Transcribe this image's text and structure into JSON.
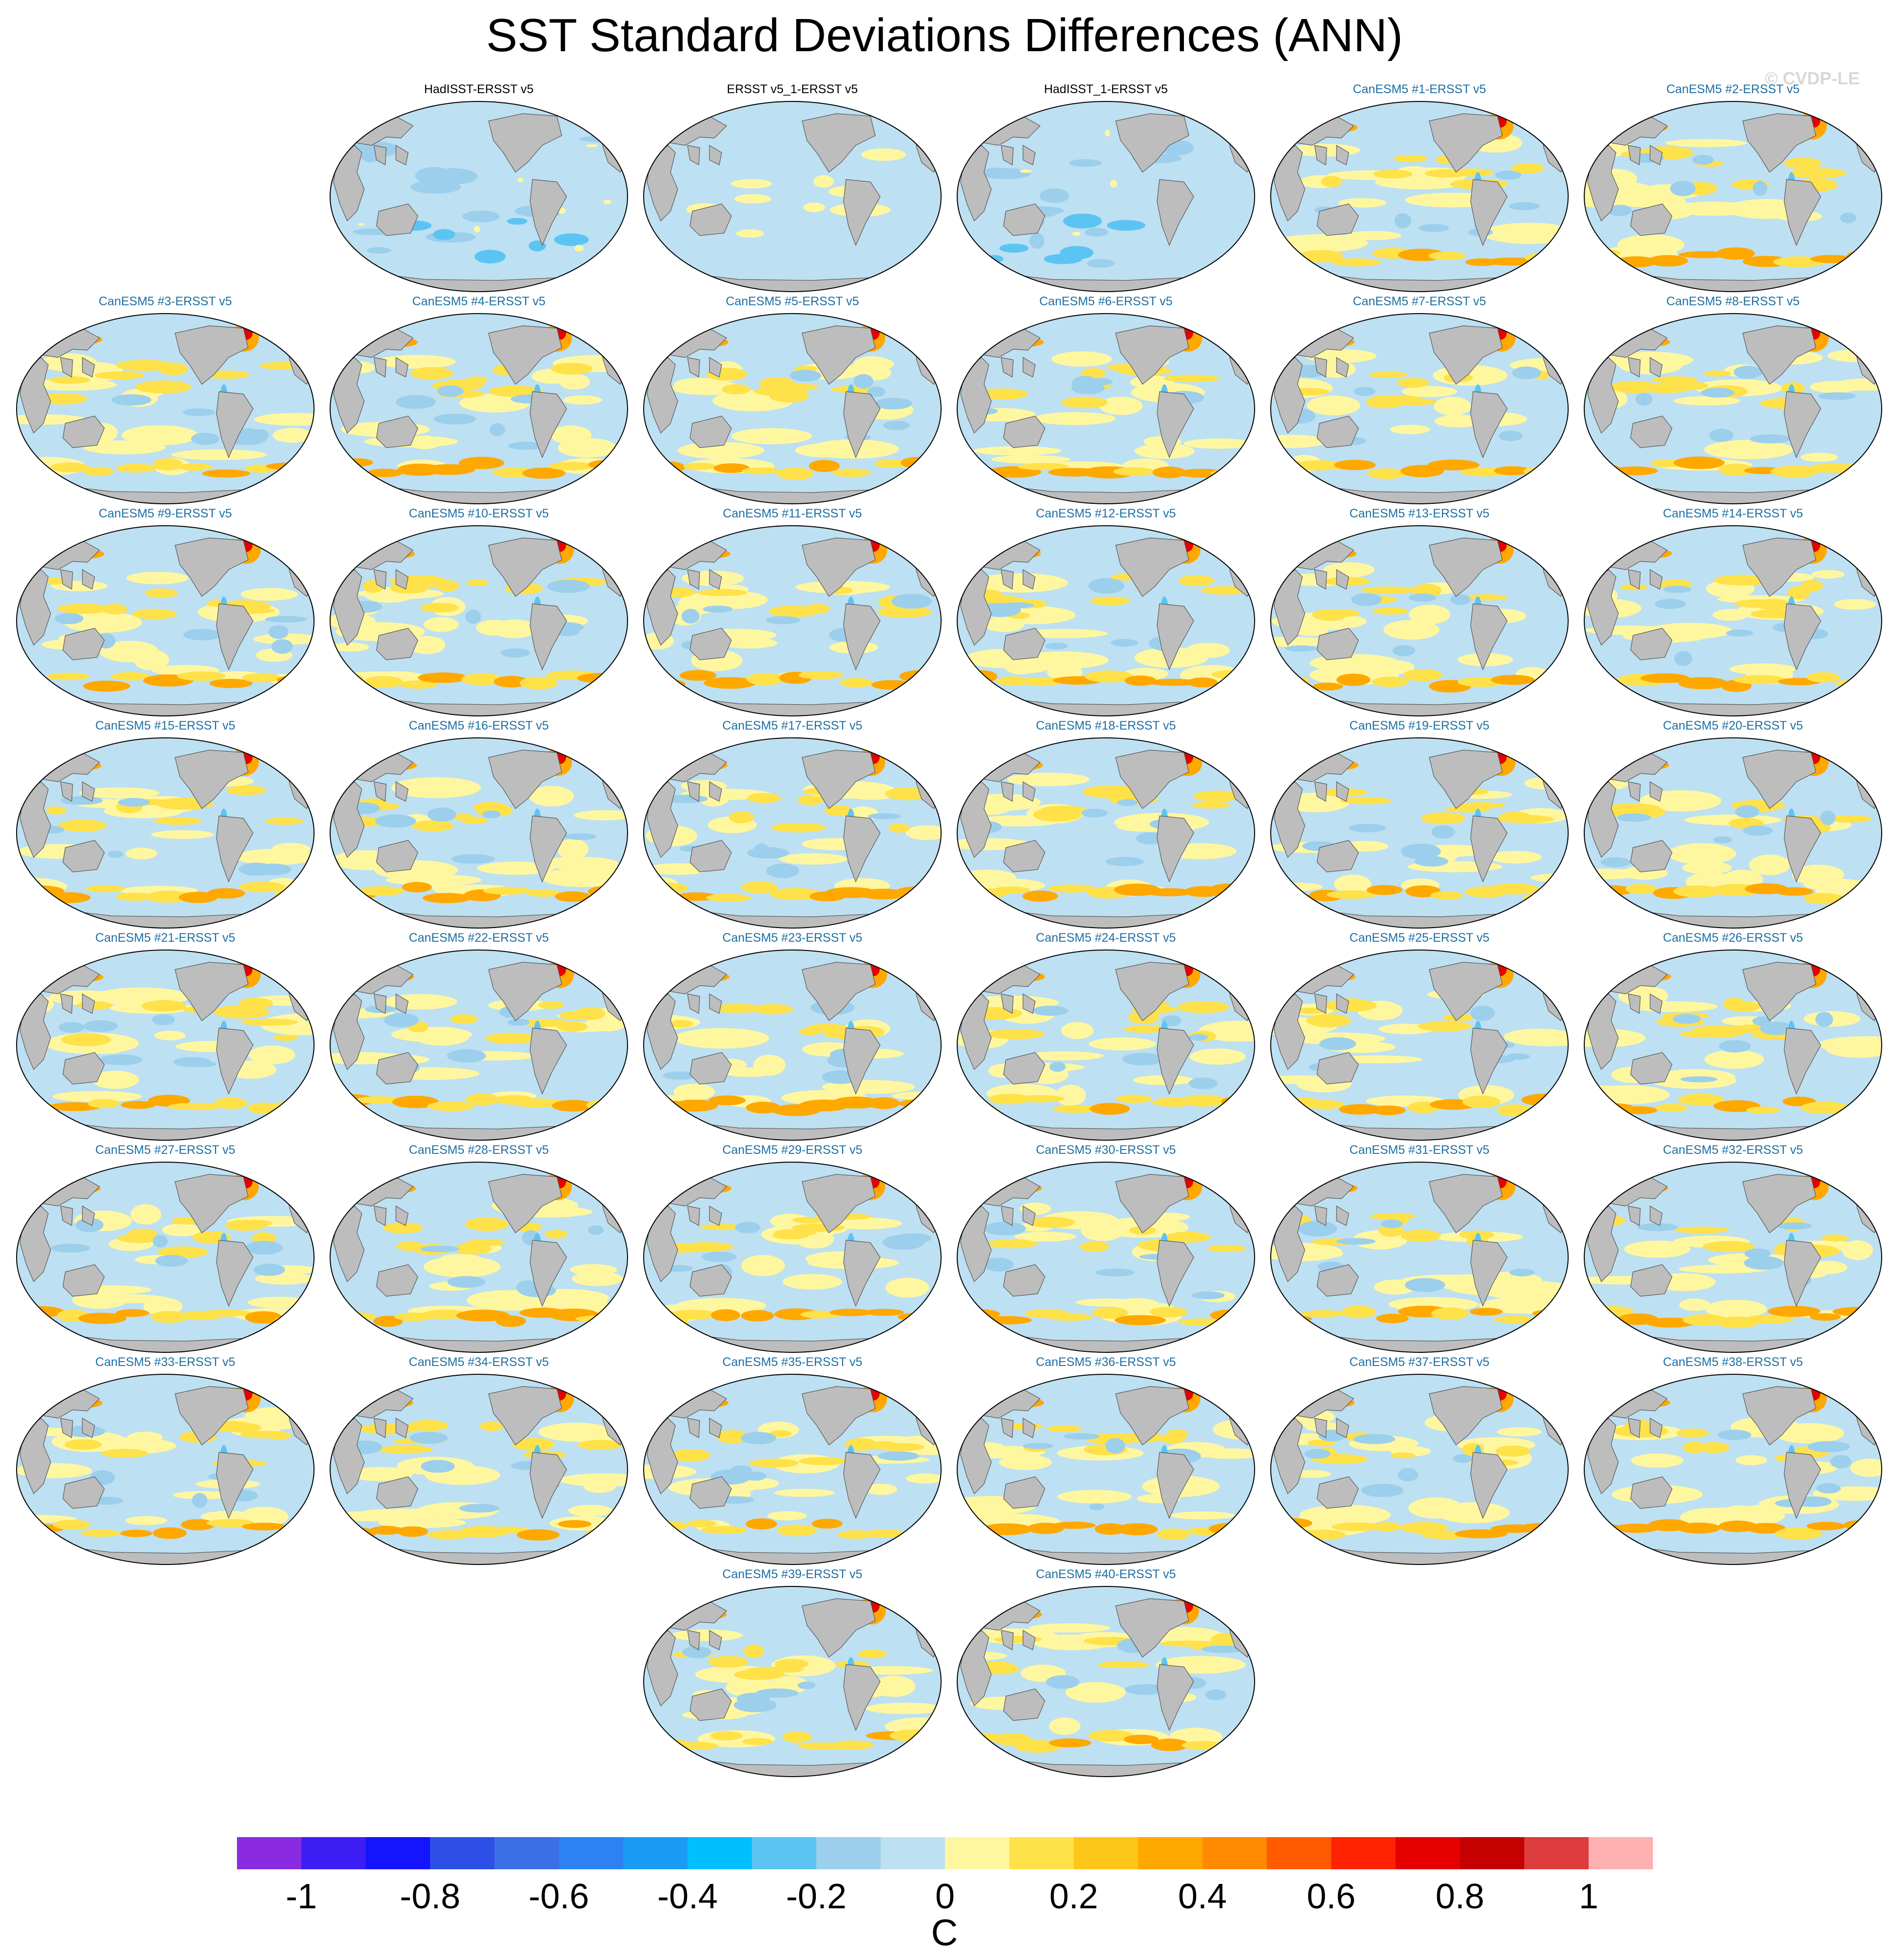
{
  "title": "SST Standard Deviations Differences (ANN)",
  "watermark": "© CVDP-LE",
  "panels": [
    {
      "title": "HadISST-ERSST v5",
      "kind": "obs_a"
    },
    {
      "title": "ERSST v5_1-ERSST v5",
      "kind": "obs_b"
    },
    {
      "title": "HadISST_1-ERSST v5",
      "kind": "obs_a"
    },
    {
      "title": "CanESM5 #1-ERSST v5",
      "kind": "model"
    },
    {
      "title": "CanESM5 #2-ERSST v5",
      "kind": "model"
    },
    {
      "title": "CanESM5 #3-ERSST v5",
      "kind": "model"
    },
    {
      "title": "CanESM5 #4-ERSST v5",
      "kind": "model"
    },
    {
      "title": "CanESM5 #5-ERSST v5",
      "kind": "model"
    },
    {
      "title": "CanESM5 #6-ERSST v5",
      "kind": "model"
    },
    {
      "title": "CanESM5 #7-ERSST v5",
      "kind": "model"
    },
    {
      "title": "CanESM5 #8-ERSST v5",
      "kind": "model"
    },
    {
      "title": "CanESM5 #9-ERSST v5",
      "kind": "model"
    },
    {
      "title": "CanESM5 #10-ERSST v5",
      "kind": "model"
    },
    {
      "title": "CanESM5 #11-ERSST v5",
      "kind": "model"
    },
    {
      "title": "CanESM5 #12-ERSST v5",
      "kind": "model"
    },
    {
      "title": "CanESM5 #13-ERSST v5",
      "kind": "model"
    },
    {
      "title": "CanESM5 #14-ERSST v5",
      "kind": "model"
    },
    {
      "title": "CanESM5 #15-ERSST v5",
      "kind": "model"
    },
    {
      "title": "CanESM5 #16-ERSST v5",
      "kind": "model"
    },
    {
      "title": "CanESM5 #17-ERSST v5",
      "kind": "model"
    },
    {
      "title": "CanESM5 #18-ERSST v5",
      "kind": "model"
    },
    {
      "title": "CanESM5 #19-ERSST v5",
      "kind": "model"
    },
    {
      "title": "CanESM5 #20-ERSST v5",
      "kind": "model"
    },
    {
      "title": "CanESM5 #21-ERSST v5",
      "kind": "model"
    },
    {
      "title": "CanESM5 #22-ERSST v5",
      "kind": "model"
    },
    {
      "title": "CanESM5 #23-ERSST v5",
      "kind": "model"
    },
    {
      "title": "CanESM5 #24-ERSST v5",
      "kind": "model"
    },
    {
      "title": "CanESM5 #25-ERSST v5",
      "kind": "model"
    },
    {
      "title": "CanESM5 #26-ERSST v5",
      "kind": "model"
    },
    {
      "title": "CanESM5 #27-ERSST v5",
      "kind": "model"
    },
    {
      "title": "CanESM5 #28-ERSST v5",
      "kind": "model"
    },
    {
      "title": "CanESM5 #29-ERSST v5",
      "kind": "model"
    },
    {
      "title": "CanESM5 #30-ERSST v5",
      "kind": "model"
    },
    {
      "title": "CanESM5 #31-ERSST v5",
      "kind": "model"
    },
    {
      "title": "CanESM5 #32-ERSST v5",
      "kind": "model"
    },
    {
      "title": "CanESM5 #33-ERSST v5",
      "kind": "model"
    },
    {
      "title": "CanESM5 #34-ERSST v5",
      "kind": "model"
    },
    {
      "title": "CanESM5 #35-ERSST v5",
      "kind": "model"
    },
    {
      "title": "CanESM5 #36-ERSST v5",
      "kind": "model"
    },
    {
      "title": "CanESM5 #37-ERSST v5",
      "kind": "model"
    },
    {
      "title": "CanESM5 #38-ERSST v5",
      "kind": "model"
    },
    {
      "title": "CanESM5 #39-ERSST v5",
      "kind": "model"
    },
    {
      "title": "CanESM5 #40-ERSST v5",
      "kind": "model"
    }
  ],
  "colorbar": {
    "unit": "C",
    "colors": [
      "#8a2be2",
      "#3c1ef5",
      "#1414ff",
      "#2e4fe6",
      "#3a6fe6",
      "#2c82f2",
      "#1a9cf5",
      "#00bfff",
      "#5bc4f2",
      "#9ccfec",
      "#bde0f2",
      "#fff7a0",
      "#ffe14a",
      "#ffc61a",
      "#ffa800",
      "#ff8a00",
      "#ff5a00",
      "#ff2200",
      "#e60000",
      "#c40000",
      "#dc3c3c",
      "#ffb0b0"
    ],
    "ticks": [
      "-1",
      "-0.8",
      "-0.6",
      "-0.4",
      "-0.2",
      "0",
      "0.2",
      "0.4",
      "0.6",
      "0.8",
      "1"
    ]
  },
  "palette": {
    "land": "#bdbdbd",
    "coast": "#555555",
    "ocean_base": "#bde0f2",
    "pos_weak": "#fff7a0",
    "pos_mid": "#ffe14a",
    "pos_strong": "#ffa800",
    "pos_max": "#e60000",
    "neg_weak": "#9ccfec",
    "neg_mid": "#5bc4f2"
  }
}
